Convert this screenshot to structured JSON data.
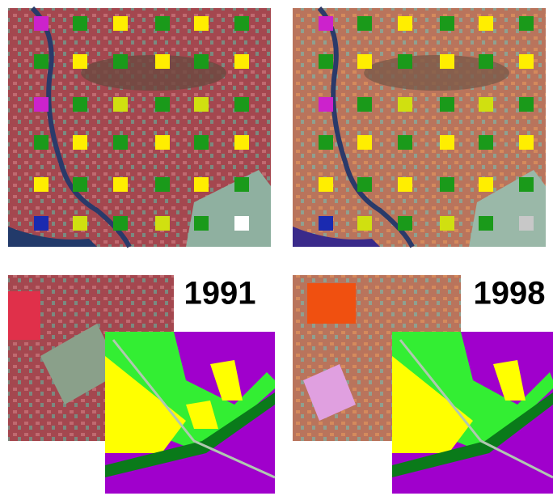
{
  "labels": [
    "1991",
    "1998"
  ]
}
